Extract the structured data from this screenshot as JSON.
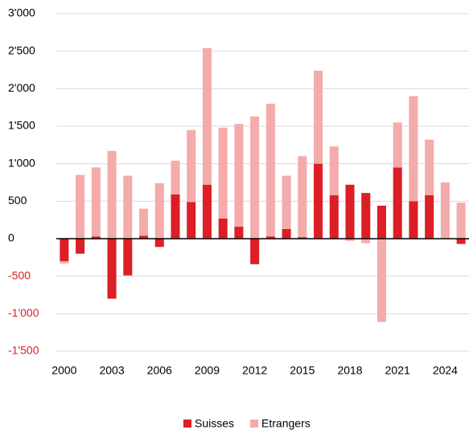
{
  "chart_data": {
    "type": "stacked_bar",
    "categories": [
      "2000",
      null,
      null,
      "2003",
      null,
      null,
      "2006",
      null,
      null,
      "2009",
      null,
      null,
      "2012",
      null,
      null,
      "2015",
      null,
      null,
      "2018",
      null,
      null,
      "2021",
      null,
      null,
      "2024",
      null
    ],
    "series": [
      {
        "name": "Suisses",
        "color": "#dc1e26",
        "values": [
          -300,
          -200,
          30,
          -800,
          -490,
          40,
          -110,
          590,
          490,
          720,
          270,
          160,
          -340,
          30,
          130,
          20,
          1000,
          580,
          720,
          610,
          440,
          950,
          500,
          580,
          0,
          -70
        ]
      },
      {
        "name": "Etrangers",
        "color": "#f4abab",
        "values": [
          -30,
          850,
          920,
          1170,
          840,
          360,
          740,
          450,
          960,
          1820,
          1210,
          1370,
          1630,
          1770,
          710,
          1080,
          1240,
          650,
          -30,
          -60,
          -1110,
          600,
          1400,
          740,
          750,
          480
        ]
      }
    ],
    "ylim": [
      -1500,
      3000
    ],
    "yticks": [
      {
        "value": -1500,
        "label": "-1'500"
      },
      {
        "value": -1000,
        "label": "-1'000"
      },
      -500,
      0,
      500,
      {
        "value": 1000,
        "label": "1'000"
      },
      {
        "value": 1500,
        "label": "1'500"
      },
      {
        "value": 2000,
        "label": "2'000"
      },
      {
        "value": 2500,
        "label": "2'500"
      },
      {
        "value": 3000,
        "label": "3'000"
      }
    ],
    "grid": true,
    "legend": "bottom"
  }
}
